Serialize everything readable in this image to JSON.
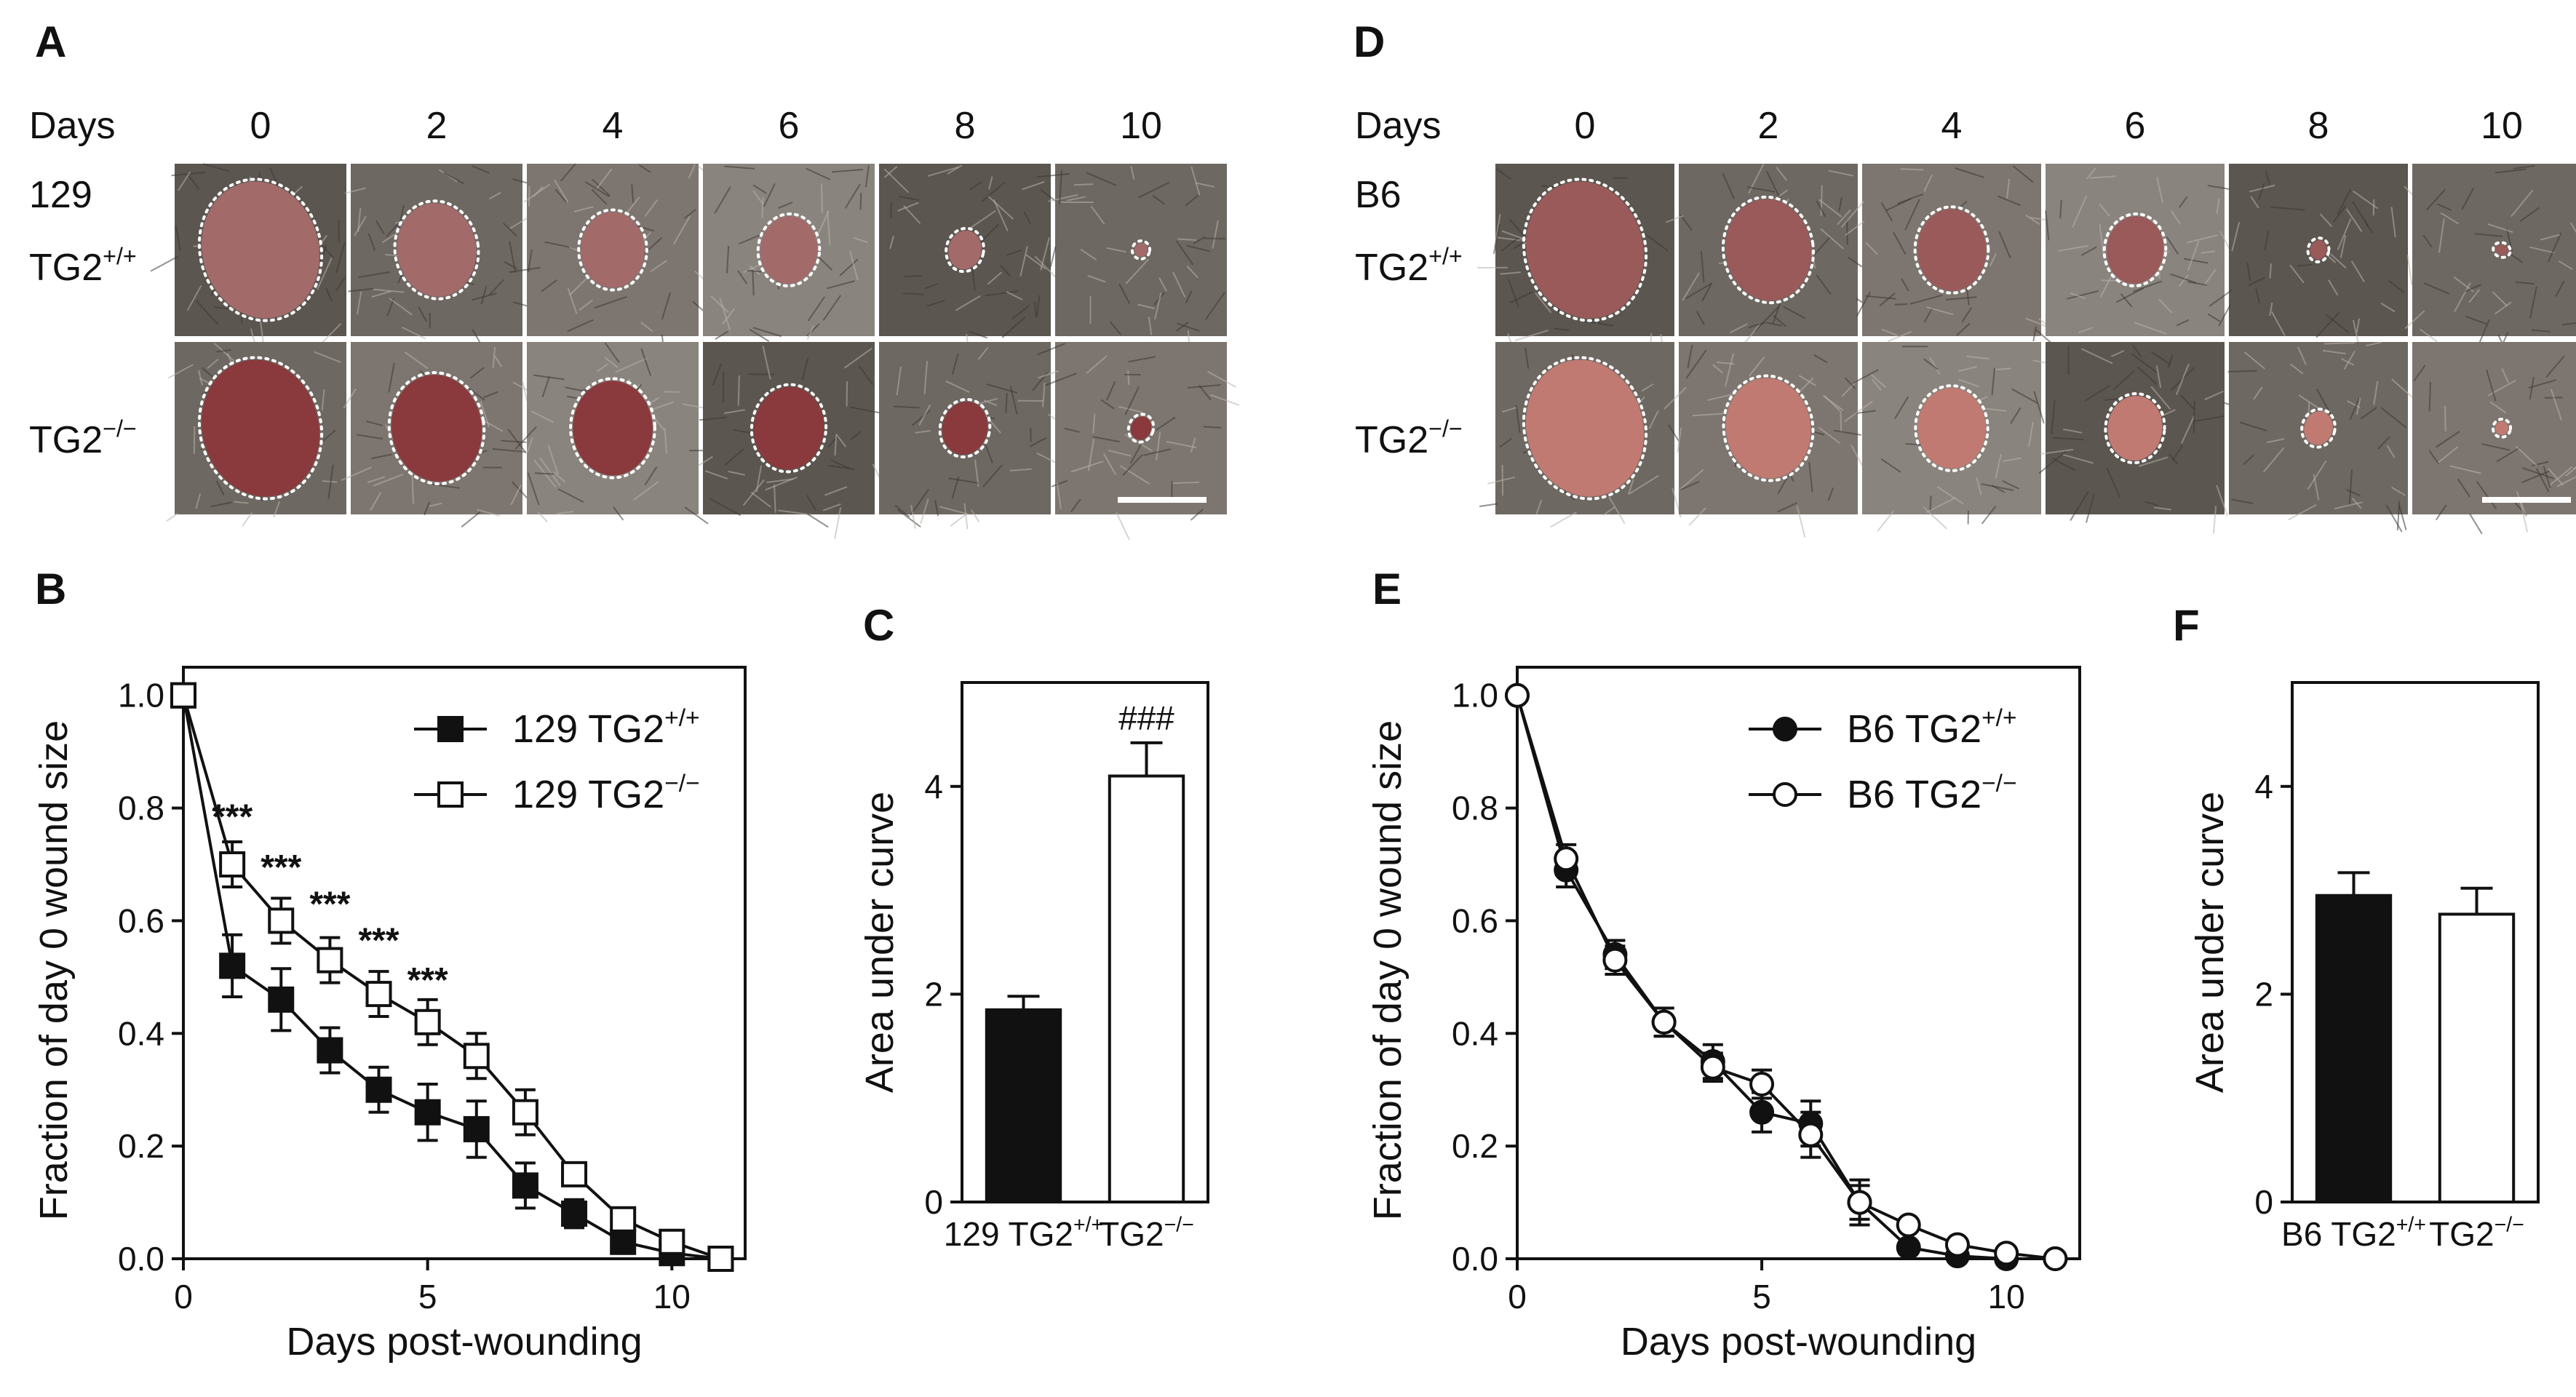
{
  "panels": [
    {
      "letter": "A",
      "header": "Days",
      "days": [
        "0",
        "2",
        "4",
        "6",
        "8",
        "10"
      ],
      "strain": "129",
      "rows": [
        {
          "base": "TG2",
          "sup": "+/+"
        },
        {
          "base": "TG2",
          "sup": "−/−"
        }
      ],
      "wound_sizes": [
        [
          1.0,
          0.46,
          0.3,
          0.24,
          0.08,
          0.01
        ],
        [
          1.0,
          0.6,
          0.47,
          0.36,
          0.15,
          0.03
        ]
      ],
      "tones": [
        "#a36a6a",
        "#8a3a3c"
      ]
    },
    {
      "letter": "D",
      "header": "Days",
      "days": [
        "0",
        "2",
        "4",
        "6",
        "8",
        "10"
      ],
      "strain": "B6",
      "rows": [
        {
          "base": "TG2",
          "sup": "+/+"
        },
        {
          "base": "TG2",
          "sup": "−/−"
        }
      ],
      "wound_sizes": [
        [
          1.0,
          0.54,
          0.35,
          0.24,
          0.02,
          0.0
        ],
        [
          1.0,
          0.53,
          0.34,
          0.22,
          0.06,
          0.01
        ]
      ],
      "tones": [
        "#9a5a5a",
        "#c07a72"
      ]
    }
  ],
  "chart_data": [
    {
      "letter": "B",
      "type": "line",
      "xlabel": "Days post-wounding",
      "ylabel": "Fraction of day 0 wound size",
      "xlim": [
        0,
        11.5
      ],
      "ylim": [
        0,
        1.05
      ],
      "xticks": [
        0,
        5,
        10
      ],
      "yticks": [
        "0.0",
        "0.2",
        "0.4",
        "0.6",
        "0.8",
        "1.0"
      ],
      "legend_position": "top-right",
      "series": [
        {
          "name_base": "129 TG2",
          "name_sup": "+/+",
          "marker": "square",
          "filled": true,
          "points": [
            [
              0,
              1.0,
              0
            ],
            [
              1,
              0.52,
              0.055
            ],
            [
              2,
              0.46,
              0.055
            ],
            [
              3,
              0.37,
              0.04
            ],
            [
              4,
              0.3,
              0.04
            ],
            [
              5,
              0.26,
              0.05
            ],
            [
              6,
              0.23,
              0.05
            ],
            [
              7,
              0.13,
              0.04
            ],
            [
              8,
              0.08,
              0.025
            ],
            [
              9,
              0.03,
              0.02
            ],
            [
              10,
              0.01,
              0.01
            ],
            [
              11,
              0.0,
              0
            ]
          ]
        },
        {
          "name_base": "129 TG2",
          "name_sup": "−/−",
          "marker": "square",
          "filled": false,
          "points": [
            [
              0,
              1.0,
              0
            ],
            [
              1,
              0.7,
              0.04
            ],
            [
              2,
              0.6,
              0.04
            ],
            [
              3,
              0.53,
              0.04
            ],
            [
              4,
              0.47,
              0.04
            ],
            [
              5,
              0.42,
              0.04
            ],
            [
              6,
              0.36,
              0.04
            ],
            [
              7,
              0.26,
              0.04
            ],
            [
              8,
              0.15,
              0.02
            ],
            [
              9,
              0.07,
              0.015
            ],
            [
              10,
              0.03,
              0.01
            ],
            [
              11,
              0.0,
              0
            ]
          ]
        }
      ],
      "annotations": [
        {
          "x": 1,
          "y": 0.79,
          "text": "***"
        },
        {
          "x": 2,
          "y": 0.7,
          "text": "***"
        },
        {
          "x": 3,
          "y": 0.635,
          "text": "***"
        },
        {
          "x": 4,
          "y": 0.57,
          "text": "***"
        },
        {
          "x": 5,
          "y": 0.5,
          "text": "***"
        }
      ]
    },
    {
      "letter": "C",
      "type": "bar",
      "ylabel": "Area under curve",
      "ylim": [
        0,
        5
      ],
      "yticks": [
        "0",
        "2",
        "4"
      ],
      "categories": [
        {
          "base": "129 TG2",
          "sup": "+/+"
        },
        {
          "base": "TG2",
          "sup": "−/−"
        }
      ],
      "values": [
        1.85,
        4.1
      ],
      "errors": [
        0.13,
        0.32
      ],
      "fills": [
        "black",
        "white"
      ],
      "annotations": [
        {
          "category": 1,
          "text": "###"
        }
      ]
    },
    {
      "letter": "E",
      "type": "line",
      "xlabel": "Days post-wounding",
      "ylabel": "Fraction of day 0 wound size",
      "xlim": [
        0,
        11.5
      ],
      "ylim": [
        0,
        1.05
      ],
      "xticks": [
        0,
        5,
        10
      ],
      "yticks": [
        "0.0",
        "0.2",
        "0.4",
        "0.6",
        "0.8",
        "1.0"
      ],
      "legend_position": "top-right",
      "series": [
        {
          "name_base": "B6 TG2",
          "name_sup": "+/+",
          "marker": "circle",
          "filled": true,
          "points": [
            [
              0,
              1.0,
              0
            ],
            [
              1,
              0.69,
              0.03
            ],
            [
              2,
              0.54,
              0.025
            ],
            [
              3,
              0.42,
              0.025
            ],
            [
              4,
              0.35,
              0.03
            ],
            [
              5,
              0.26,
              0.035
            ],
            [
              6,
              0.24,
              0.04
            ],
            [
              7,
              0.1,
              0.04
            ],
            [
              8,
              0.02,
              0.01
            ],
            [
              9,
              0.005,
              0.005
            ],
            [
              10,
              0.0,
              0.005
            ],
            [
              11,
              0.0,
              0
            ]
          ]
        },
        {
          "name_base": "B6 TG2",
          "name_sup": "−/−",
          "marker": "circle",
          "filled": false,
          "points": [
            [
              0,
              1.0,
              0
            ],
            [
              1,
              0.71,
              0.025
            ],
            [
              2,
              0.53,
              0.025
            ],
            [
              3,
              0.42,
              0.025
            ],
            [
              4,
              0.34,
              0.025
            ],
            [
              5,
              0.31,
              0.025
            ],
            [
              6,
              0.22,
              0.04
            ],
            [
              7,
              0.1,
              0.03
            ],
            [
              8,
              0.06,
              0.01
            ],
            [
              9,
              0.025,
              0.01
            ],
            [
              10,
              0.01,
              0.005
            ],
            [
              11,
              0.0,
              0
            ]
          ]
        }
      ],
      "annotations": []
    },
    {
      "letter": "F",
      "type": "bar",
      "ylabel": "Area under curve",
      "ylim": [
        0,
        5
      ],
      "yticks": [
        "0",
        "2",
        "4"
      ],
      "categories": [
        {
          "base": "B6 TG2",
          "sup": "+/+"
        },
        {
          "base": "TG2",
          "sup": "−/−"
        }
      ],
      "values": [
        2.95,
        2.77
      ],
      "errors": [
        0.22,
        0.25
      ],
      "fills": [
        "black",
        "white"
      ],
      "annotations": []
    }
  ]
}
